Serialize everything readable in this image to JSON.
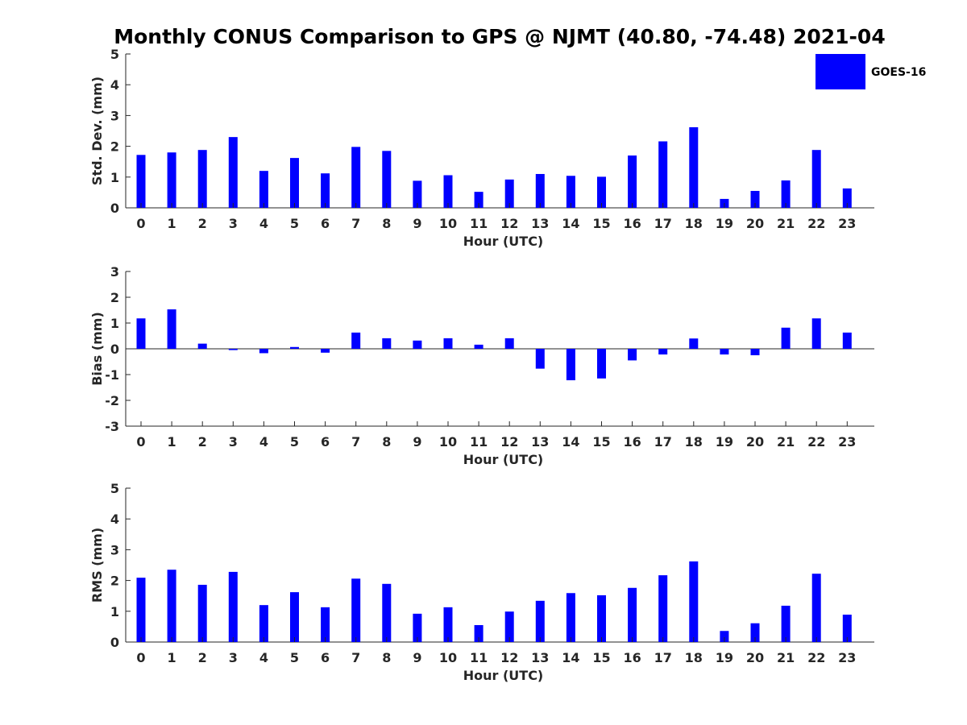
{
  "title": "Monthly CONUS Comparison to GPS @ NJMT (40.80, -74.48) 2021-04",
  "legend": {
    "label": "GOES-16",
    "color": "#0000ff",
    "placement": "top-right"
  },
  "chart_data": [
    {
      "type": "bar",
      "title": "",
      "xlabel": "Hour (UTC)",
      "ylabel": "Std. Dev. (mm)",
      "ylim": [
        0,
        5
      ],
      "yticks": [
        0,
        1,
        2,
        3,
        4,
        5
      ],
      "categories": [
        "0",
        "1",
        "2",
        "3",
        "4",
        "5",
        "6",
        "7",
        "8",
        "9",
        "10",
        "11",
        "12",
        "13",
        "14",
        "15",
        "16",
        "17",
        "18",
        "19",
        "20",
        "21",
        "22",
        "23"
      ],
      "series": [
        {
          "name": "GOES-16",
          "color": "#0000ff",
          "values": [
            1.72,
            1.8,
            1.88,
            2.3,
            1.2,
            1.62,
            1.12,
            1.98,
            1.85,
            0.88,
            1.06,
            0.52,
            0.92,
            1.1,
            1.04,
            1.01,
            1.7,
            2.16,
            2.62,
            0.29,
            0.55,
            0.89,
            1.88,
            0.63
          ]
        }
      ],
      "grid": false
    },
    {
      "type": "bar",
      "title": "",
      "xlabel": "Hour (UTC)",
      "ylabel": "Bias (mm)",
      "ylim": [
        -3,
        3
      ],
      "yticks": [
        -3,
        -2,
        -1,
        0,
        1,
        2,
        3
      ],
      "categories": [
        "0",
        "1",
        "2",
        "3",
        "4",
        "5",
        "6",
        "7",
        "8",
        "9",
        "10",
        "11",
        "12",
        "13",
        "14",
        "15",
        "16",
        "17",
        "18",
        "19",
        "20",
        "21",
        "22",
        "23"
      ],
      "series": [
        {
          "name": "GOES-16",
          "color": "#0000ff",
          "values": [
            1.18,
            1.53,
            0.2,
            -0.05,
            -0.17,
            0.07,
            -0.15,
            0.63,
            0.41,
            0.32,
            0.41,
            0.16,
            0.41,
            -0.77,
            -1.22,
            -1.15,
            -0.45,
            -0.22,
            0.4,
            -0.22,
            -0.25,
            0.82,
            1.18,
            0.63
          ]
        }
      ],
      "grid": false
    },
    {
      "type": "bar",
      "title": "",
      "xlabel": "Hour (UTC)",
      "ylabel": "RMS (mm)",
      "ylim": [
        0,
        5
      ],
      "yticks": [
        0,
        1,
        2,
        3,
        4,
        5
      ],
      "categories": [
        "0",
        "1",
        "2",
        "3",
        "4",
        "5",
        "6",
        "7",
        "8",
        "9",
        "10",
        "11",
        "12",
        "13",
        "14",
        "15",
        "16",
        "17",
        "18",
        "19",
        "20",
        "21",
        "22",
        "23"
      ],
      "series": [
        {
          "name": "GOES-16",
          "color": "#0000ff",
          "values": [
            2.09,
            2.35,
            1.86,
            2.28,
            1.2,
            1.62,
            1.13,
            2.06,
            1.89,
            0.92,
            1.13,
            0.55,
            0.99,
            1.34,
            1.59,
            1.52,
            1.76,
            2.17,
            2.62,
            0.36,
            0.61,
            1.18,
            2.22,
            0.89
          ]
        }
      ],
      "grid": false
    }
  ]
}
